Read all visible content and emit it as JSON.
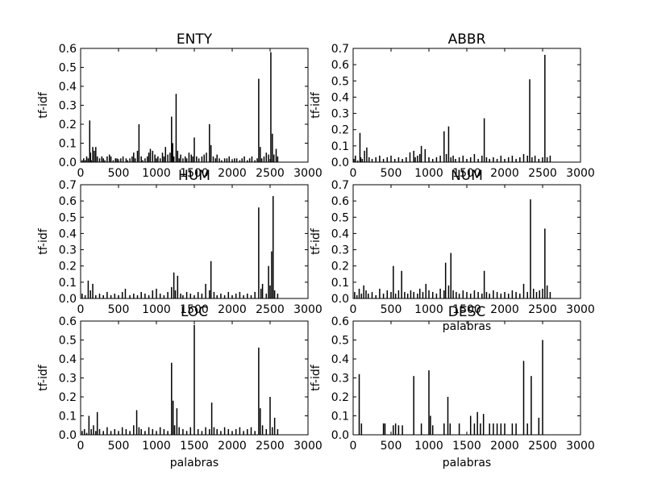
{
  "chart_data": [
    {
      "type": "bar",
      "title": "ENTY",
      "xlabel": "",
      "ylabel": "tf-idf",
      "xlim": [
        0,
        3000
      ],
      "ylim": [
        0,
        0.6
      ],
      "xticks": [
        0,
        500,
        1000,
        1500,
        2000,
        2500,
        3000
      ],
      "yticks": [
        0.0,
        0.1,
        0.2,
        0.3,
        0.4,
        0.5,
        0.6
      ],
      "x": [
        20,
        40,
        60,
        80,
        100,
        120,
        130,
        140,
        160,
        180,
        200,
        220,
        250,
        280,
        300,
        320,
        350,
        380,
        400,
        430,
        460,
        480,
        500,
        530,
        560,
        600,
        620,
        650,
        680,
        700,
        720,
        750,
        770,
        800,
        820,
        850,
        880,
        900,
        920,
        950,
        980,
        1000,
        1020,
        1050,
        1080,
        1100,
        1120,
        1150,
        1180,
        1200,
        1215,
        1230,
        1260,
        1280,
        1300,
        1320,
        1350,
        1380,
        1400,
        1430,
        1460,
        1480,
        1500,
        1530,
        1560,
        1600,
        1630,
        1660,
        1700,
        1720,
        1750,
        1780,
        1800,
        1830,
        1860,
        1900,
        1930,
        1960,
        2000,
        2030,
        2060,
        2100,
        2130,
        2160,
        2200,
        2230,
        2260,
        2300,
        2330,
        2350,
        2370,
        2390,
        2420,
        2450,
        2480,
        2510,
        2530,
        2550,
        2580,
        2600
      ],
      "values": [
        0.01,
        0.02,
        0.01,
        0.03,
        0.02,
        0.22,
        0.05,
        0.01,
        0.08,
        0.06,
        0.08,
        0.03,
        0.02,
        0.03,
        0.02,
        0.01,
        0.03,
        0.04,
        0.03,
        0.01,
        0.02,
        0.02,
        0.01,
        0.02,
        0.03,
        0.02,
        0.01,
        0.02,
        0.03,
        0.05,
        0.02,
        0.06,
        0.2,
        0.03,
        0.01,
        0.02,
        0.03,
        0.05,
        0.07,
        0.06,
        0.04,
        0.02,
        0.03,
        0.02,
        0.05,
        0.03,
        0.08,
        0.04,
        0.05,
        0.24,
        0.1,
        0.03,
        0.36,
        0.06,
        0.02,
        0.04,
        0.02,
        0.03,
        0.02,
        0.05,
        0.04,
        0.03,
        0.13,
        0.03,
        0.02,
        0.03,
        0.04,
        0.05,
        0.2,
        0.09,
        0.03,
        0.02,
        0.04,
        0.02,
        0.01,
        0.02,
        0.02,
        0.03,
        0.01,
        0.02,
        0.02,
        0.01,
        0.02,
        0.03,
        0.01,
        0.02,
        0.03,
        0.01,
        0.02,
        0.44,
        0.08,
        0.02,
        0.03,
        0.05,
        0.04,
        0.58,
        0.15,
        0.04,
        0.07,
        0.03
      ]
    },
    {
      "type": "bar",
      "title": "ABBR",
      "xlabel": "",
      "ylabel": "tf-idf",
      "xlim": [
        0,
        3000
      ],
      "ylim": [
        0,
        0.7
      ],
      "xticks": [
        0,
        500,
        1000,
        1500,
        2000,
        2500,
        3000
      ],
      "yticks": [
        0.0,
        0.1,
        0.2,
        0.3,
        0.4,
        0.5,
        0.6,
        0.7
      ],
      "x": [
        10,
        30,
        60,
        90,
        100,
        120,
        150,
        180,
        210,
        250,
        300,
        350,
        400,
        450,
        500,
        550,
        600,
        650,
        700,
        750,
        800,
        820,
        850,
        880,
        900,
        950,
        1000,
        1050,
        1100,
        1150,
        1200,
        1230,
        1260,
        1290,
        1320,
        1350,
        1400,
        1450,
        1500,
        1550,
        1600,
        1650,
        1700,
        1730,
        1760,
        1800,
        1850,
        1900,
        1950,
        2000,
        2050,
        2100,
        2150,
        2200,
        2250,
        2300,
        2330,
        2360,
        2400,
        2450,
        2500,
        2530,
        2560,
        2600
      ],
      "values": [
        0.02,
        0.04,
        0.01,
        0.18,
        0.03,
        0.02,
        0.07,
        0.09,
        0.03,
        0.02,
        0.03,
        0.04,
        0.02,
        0.03,
        0.04,
        0.02,
        0.03,
        0.02,
        0.03,
        0.06,
        0.07,
        0.03,
        0.04,
        0.05,
        0.1,
        0.08,
        0.03,
        0.02,
        0.03,
        0.04,
        0.19,
        0.05,
        0.22,
        0.03,
        0.04,
        0.02,
        0.03,
        0.04,
        0.02,
        0.03,
        0.05,
        0.02,
        0.04,
        0.27,
        0.03,
        0.02,
        0.03,
        0.02,
        0.04,
        0.02,
        0.03,
        0.04,
        0.02,
        0.03,
        0.05,
        0.04,
        0.51,
        0.03,
        0.04,
        0.02,
        0.03,
        0.66,
        0.03,
        0.04
      ]
    },
    {
      "type": "bar",
      "title": "HUM",
      "xlabel": "",
      "ylabel": "tf-idf",
      "xlim": [
        0,
        3000
      ],
      "ylim": [
        0,
        0.7
      ],
      "xticks": [
        0,
        500,
        1000,
        1500,
        2000,
        2500,
        3000
      ],
      "yticks": [
        0.0,
        0.1,
        0.2,
        0.3,
        0.4,
        0.5,
        0.6,
        0.7
      ],
      "x": [
        20,
        60,
        100,
        130,
        160,
        200,
        250,
        300,
        350,
        400,
        450,
        500,
        550,
        590,
        650,
        700,
        750,
        800,
        850,
        900,
        950,
        1000,
        1050,
        1100,
        1150,
        1200,
        1230,
        1250,
        1280,
        1320,
        1350,
        1400,
        1450,
        1500,
        1550,
        1600,
        1650,
        1700,
        1720,
        1760,
        1800,
        1850,
        1900,
        1950,
        2000,
        2050,
        2100,
        2150,
        2200,
        2250,
        2300,
        2350,
        2380,
        2400,
        2450,
        2480,
        2500,
        2520,
        2540,
        2560,
        2600
      ],
      "values": [
        0.03,
        0.02,
        0.11,
        0.05,
        0.09,
        0.02,
        0.03,
        0.02,
        0.04,
        0.02,
        0.03,
        0.02,
        0.04,
        0.06,
        0.02,
        0.03,
        0.02,
        0.04,
        0.03,
        0.02,
        0.05,
        0.06,
        0.03,
        0.02,
        0.04,
        0.07,
        0.16,
        0.05,
        0.14,
        0.03,
        0.02,
        0.04,
        0.03,
        0.02,
        0.04,
        0.03,
        0.09,
        0.05,
        0.23,
        0.04,
        0.02,
        0.03,
        0.02,
        0.04,
        0.02,
        0.03,
        0.04,
        0.02,
        0.03,
        0.02,
        0.04,
        0.56,
        0.06,
        0.09,
        0.03,
        0.2,
        0.08,
        0.29,
        0.63,
        0.05,
        0.03
      ]
    },
    {
      "type": "bar",
      "title": "NUM",
      "xlabel": "palabras",
      "ylabel": "tf-idf",
      "xlim": [
        0,
        3000
      ],
      "ylim": [
        0,
        0.7
      ],
      "xticks": [
        0,
        500,
        1000,
        1500,
        2000,
        2500,
        3000
      ],
      "yticks": [
        0.0,
        0.1,
        0.2,
        0.3,
        0.4,
        0.5,
        0.6,
        0.7
      ],
      "x": [
        20,
        50,
        80,
        110,
        140,
        170,
        200,
        250,
        300,
        350,
        400,
        450,
        500,
        530,
        560,
        600,
        640,
        680,
        720,
        760,
        800,
        850,
        880,
        920,
        960,
        1000,
        1050,
        1100,
        1150,
        1200,
        1220,
        1260,
        1290,
        1320,
        1360,
        1400,
        1450,
        1500,
        1550,
        1600,
        1650,
        1700,
        1730,
        1760,
        1800,
        1850,
        1900,
        1950,
        2000,
        2050,
        2100,
        2150,
        2200,
        2250,
        2300,
        2340,
        2380,
        2420,
        2460,
        2500,
        2530,
        2560,
        2600
      ],
      "values": [
        0.04,
        0.02,
        0.06,
        0.03,
        0.08,
        0.05,
        0.03,
        0.04,
        0.02,
        0.06,
        0.03,
        0.05,
        0.04,
        0.2,
        0.03,
        0.05,
        0.17,
        0.04,
        0.03,
        0.05,
        0.04,
        0.03,
        0.06,
        0.04,
        0.09,
        0.05,
        0.04,
        0.03,
        0.06,
        0.05,
        0.22,
        0.08,
        0.28,
        0.05,
        0.04,
        0.03,
        0.05,
        0.04,
        0.03,
        0.05,
        0.04,
        0.03,
        0.17,
        0.04,
        0.03,
        0.05,
        0.04,
        0.03,
        0.04,
        0.03,
        0.05,
        0.04,
        0.03,
        0.09,
        0.04,
        0.61,
        0.06,
        0.04,
        0.05,
        0.06,
        0.43,
        0.08,
        0.04
      ]
    },
    {
      "type": "bar",
      "title": "LOC",
      "xlabel": "palabras",
      "ylabel": "tf-idf",
      "xlim": [
        0,
        3000
      ],
      "ylim": [
        0,
        0.6
      ],
      "xticks": [
        0,
        500,
        1000,
        1500,
        2000,
        2500,
        3000
      ],
      "yticks": [
        0.0,
        0.1,
        0.2,
        0.3,
        0.4,
        0.5,
        0.6
      ],
      "x": [
        20,
        50,
        80,
        110,
        140,
        170,
        200,
        220,
        250,
        300,
        350,
        400,
        450,
        500,
        550,
        600,
        650,
        700,
        740,
        770,
        800,
        850,
        900,
        950,
        1000,
        1050,
        1100,
        1150,
        1200,
        1220,
        1240,
        1270,
        1300,
        1350,
        1400,
        1450,
        1500,
        1550,
        1600,
        1650,
        1700,
        1730,
        1760,
        1800,
        1850,
        1900,
        1950,
        2000,
        2050,
        2100,
        2150,
        2200,
        2250,
        2300,
        2350,
        2370,
        2400,
        2450,
        2500,
        2530,
        2560,
        2600
      ],
      "values": [
        0.02,
        0.03,
        0.01,
        0.1,
        0.03,
        0.05,
        0.02,
        0.12,
        0.03,
        0.02,
        0.04,
        0.02,
        0.03,
        0.02,
        0.04,
        0.03,
        0.02,
        0.05,
        0.13,
        0.04,
        0.03,
        0.02,
        0.04,
        0.03,
        0.02,
        0.04,
        0.03,
        0.02,
        0.38,
        0.18,
        0.05,
        0.14,
        0.04,
        0.03,
        0.02,
        0.04,
        0.58,
        0.03,
        0.02,
        0.04,
        0.03,
        0.17,
        0.04,
        0.03,
        0.02,
        0.04,
        0.03,
        0.02,
        0.03,
        0.04,
        0.02,
        0.03,
        0.04,
        0.02,
        0.46,
        0.14,
        0.05,
        0.03,
        0.2,
        0.04,
        0.09,
        0.03
      ]
    },
    {
      "type": "bar",
      "title": "DESC",
      "xlabel": "palabras",
      "ylabel": "tf-idf",
      "xlim": [
        0,
        3000
      ],
      "ylim": [
        0,
        0.6
      ],
      "xticks": [
        0,
        500,
        1000,
        1500,
        2000,
        2500,
        3000
      ],
      "yticks": [
        0.0,
        0.1,
        0.2,
        0.3,
        0.4,
        0.5,
        0.6
      ],
      "x": [
        80,
        110,
        400,
        420,
        530,
        560,
        600,
        650,
        800,
        900,
        1000,
        1020,
        1050,
        1200,
        1250,
        1280,
        1400,
        1550,
        1600,
        1640,
        1680,
        1720,
        1800,
        1850,
        1900,
        1950,
        2000,
        2100,
        2150,
        2250,
        2300,
        2350,
        2450,
        2500
      ],
      "values": [
        0.32,
        0.06,
        0.06,
        0.06,
        0.05,
        0.06,
        0.05,
        0.05,
        0.31,
        0.06,
        0.34,
        0.1,
        0.05,
        0.06,
        0.2,
        0.06,
        0.06,
        0.1,
        0.06,
        0.12,
        0.06,
        0.11,
        0.06,
        0.06,
        0.06,
        0.06,
        0.06,
        0.06,
        0.06,
        0.39,
        0.06,
        0.31,
        0.09,
        0.5
      ]
    }
  ]
}
